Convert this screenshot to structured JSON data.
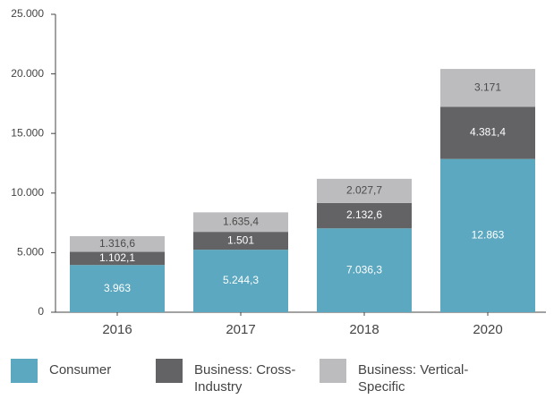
{
  "chart_data": {
    "type": "stacked_bar",
    "categories": [
      "2016",
      "2017",
      "2018",
      "2020"
    ],
    "series": [
      {
        "name": "Consumer",
        "color": "#5ba8c0",
        "label_color": "#ffffff",
        "values": [
          3963,
          5244.3,
          7036.3,
          12863
        ],
        "value_labels": [
          "3.963",
          "5.244,3",
          "7.036,3",
          "12.863"
        ]
      },
      {
        "name": "Business: Cross-Industry",
        "color": "#636366",
        "label_color": "#ffffff",
        "values": [
          1102.1,
          1501,
          2132.6,
          4381.4
        ],
        "value_labels": [
          "1.102,1",
          "1.501",
          "2.132,6",
          "4.381,4"
        ]
      },
      {
        "name": "Business: Vertical-Specific",
        "color": "#bcbcbe",
        "label_color": "#4a4a4a",
        "values": [
          1316.6,
          1635.4,
          2027.7,
          3171
        ],
        "value_labels": [
          "1.316,6",
          "1.635,4",
          "2.027,7",
          "3.171"
        ]
      }
    ],
    "ylim": [
      0,
      25000
    ],
    "yticks": [
      0,
      {
        "value": 5000,
        "label": "5.000"
      },
      {
        "value": 10000,
        "label": "10.000"
      },
      {
        "value": 15000,
        "label": "15.000"
      },
      {
        "value": 20000,
        "label": "20.000"
      },
      {
        "value": 25000,
        "label": "25.000"
      }
    ],
    "legend": "bottom"
  }
}
